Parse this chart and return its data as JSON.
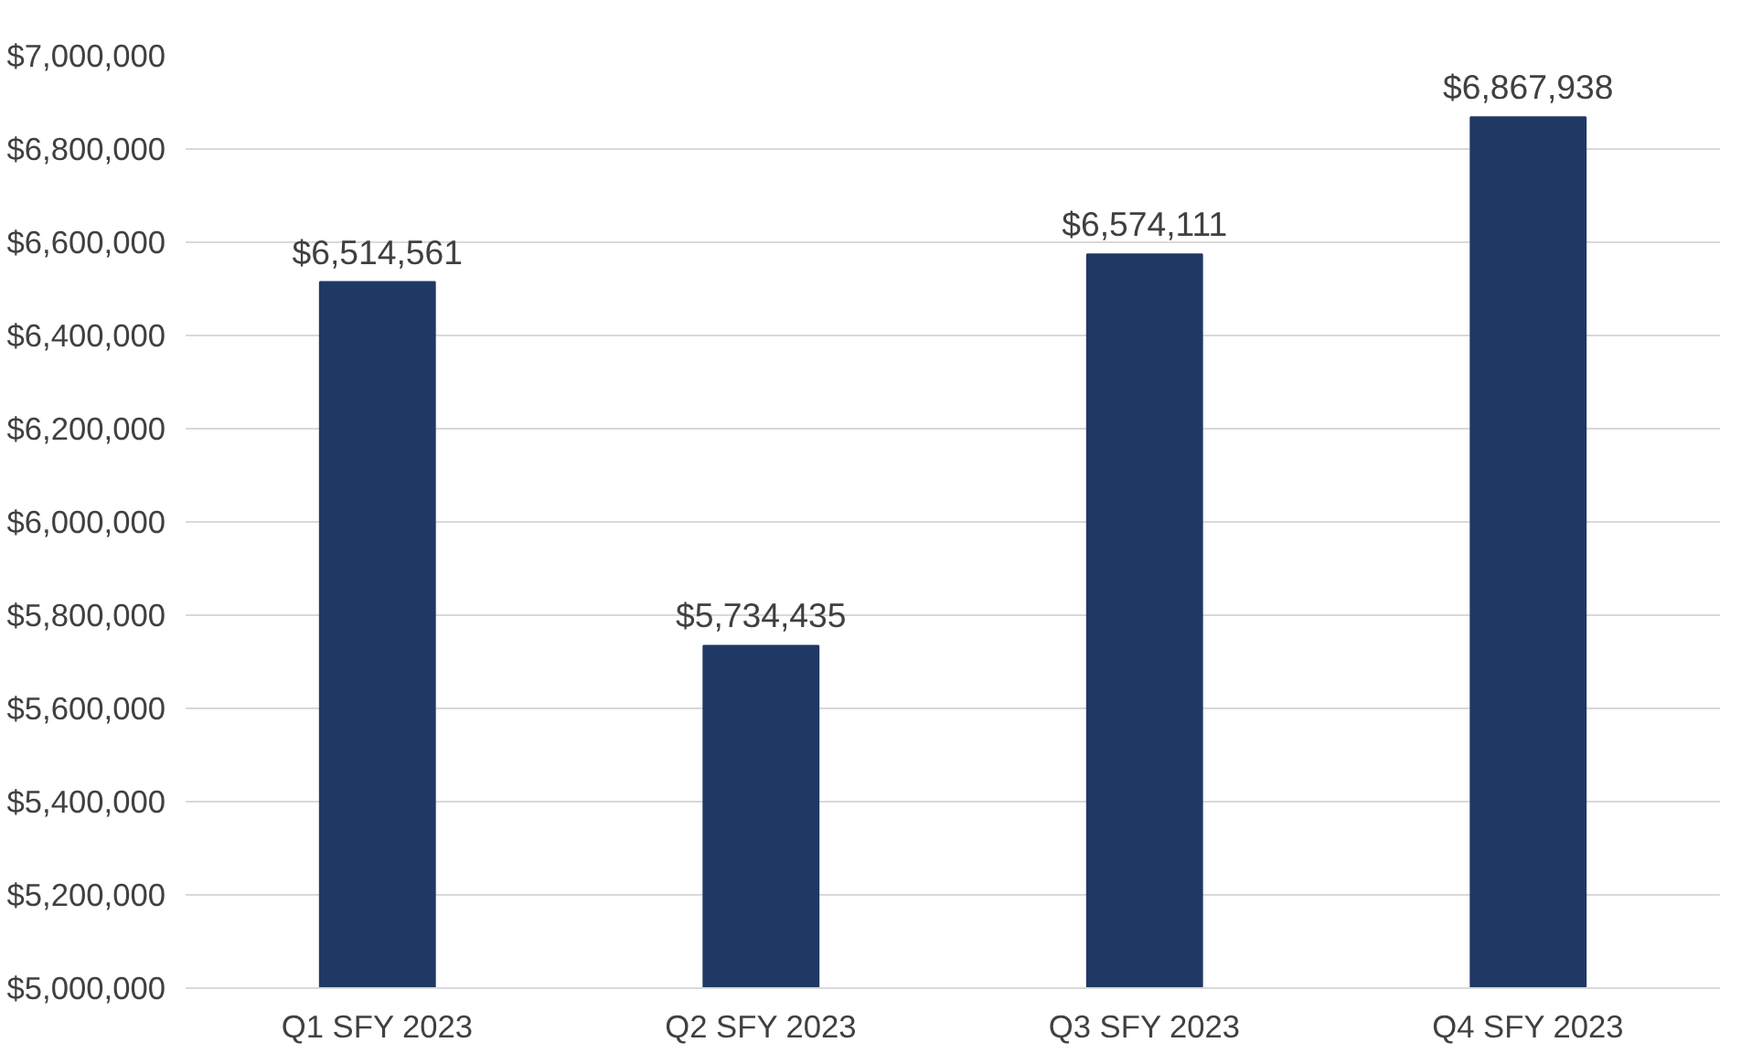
{
  "chart_data": {
    "type": "bar",
    "categories": [
      "Q1 SFY 2023",
      "Q2 SFY 2023",
      "Q3 SFY 2023",
      "Q4 SFY 2023"
    ],
    "values": [
      6514561,
      5734435,
      6574111,
      6867938
    ],
    "value_labels": [
      "$6,514,561",
      "$5,734,435",
      "$6,574,111",
      "$6,867,938"
    ],
    "color": "#203864",
    "ylim": [
      5000000,
      7000000
    ],
    "yticks": [
      {
        "value": 5000000,
        "label": "$5,000,000"
      },
      {
        "value": 5200000,
        "label": "$5,200,000"
      },
      {
        "value": 5400000,
        "label": "$5,400,000"
      },
      {
        "value": 5600000,
        "label": "$5,600,000"
      },
      {
        "value": 5800000,
        "label": "$5,800,000"
      },
      {
        "value": 6000000,
        "label": "$6,000,000"
      },
      {
        "value": 6200000,
        "label": "$6,200,000"
      },
      {
        "value": 6400000,
        "label": "$6,400,000"
      },
      {
        "value": 6600000,
        "label": "$6,600,000"
      },
      {
        "value": 6800000,
        "label": "$6,800,000"
      },
      {
        "value": 7000000,
        "label": "$7,000,000"
      }
    ],
    "grid": "y"
  }
}
